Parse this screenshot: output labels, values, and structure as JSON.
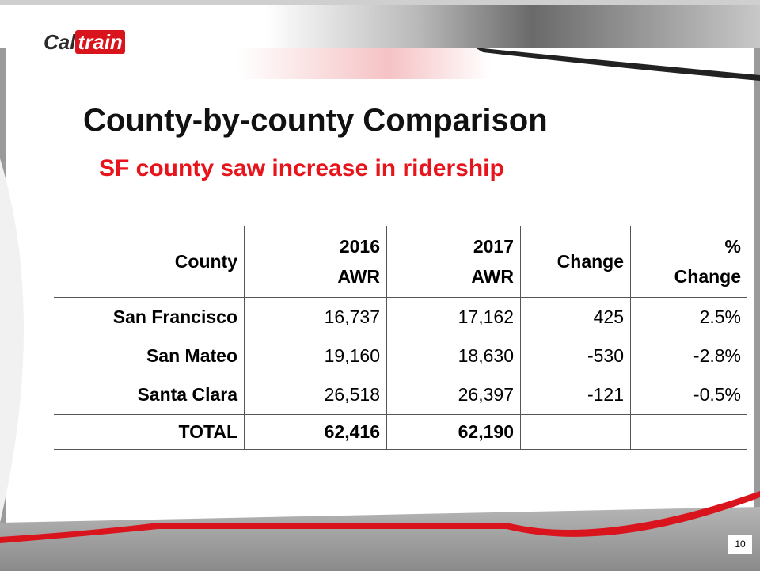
{
  "logo": {
    "first": "Cal",
    "second": "train"
  },
  "title": "County-by-county Comparison",
  "subtitle": "SF county saw increase in ridership",
  "table": {
    "header": [
      [
        "County"
      ],
      [
        "2016",
        "AWR"
      ],
      [
        "2017",
        "AWR"
      ],
      [
        "Change"
      ],
      [
        "%",
        "Change"
      ]
    ],
    "rows": [
      [
        "San Francisco",
        "16,737",
        "17,162",
        "425",
        "2.5%"
      ],
      [
        "San Mateo",
        "19,160",
        "18,630",
        "-530",
        "-2.8%"
      ],
      [
        "Santa Clara",
        "26,518",
        "26,397",
        "-121",
        "-0.5%"
      ],
      [
        "TOTAL",
        "62,416",
        "62,190",
        "",
        ""
      ]
    ]
  },
  "page_number": "10"
}
